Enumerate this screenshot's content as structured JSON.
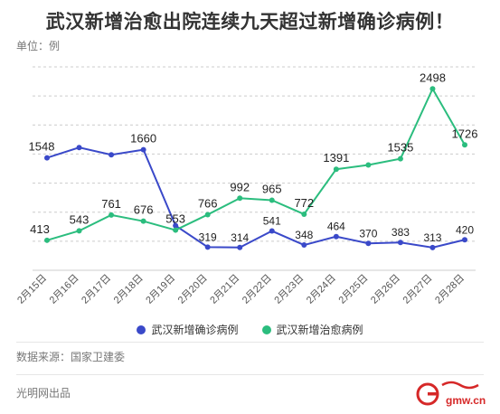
{
  "header": {
    "title": "武汉新增治愈出院连续九天超过新增确诊病例！",
    "unit": "单位：例"
  },
  "footer": {
    "source": "数据来源：国家卫建委",
    "producer": "光明网出品",
    "logo_text": "gmw.cn"
  },
  "colors": {
    "confirmed": "#3a49c9",
    "cured": "#2bbd7e",
    "grid": "#cccccc",
    "tick": "#555555"
  },
  "chart_data": {
    "type": "line",
    "title": "武汉新增治愈出院连续九天超过新增确诊病例！",
    "xlabel": "",
    "ylabel": "单位：例",
    "ylim": [
      0,
      2800
    ],
    "grid": true,
    "legend": "bottom",
    "categories": [
      "2月15日",
      "2月16日",
      "2月17日",
      "2月18日",
      "2月19日",
      "2月20日",
      "2月21日",
      "2月22日",
      "2月23日",
      "2月24日",
      "2月25日",
      "2月26日",
      "2月27日",
      "2月28日"
    ],
    "series": [
      {
        "name": "武汉新增确诊病例",
        "color": "#3a49c9",
        "values": [
          1548,
          1690,
          1590,
          1660,
          615,
          319,
          314,
          541,
          348,
          464,
          370,
          383,
          313,
          420
        ],
        "labels": [
          "1548",
          "",
          "",
          "1660",
          "",
          "319",
          "314",
          "541",
          "348",
          "464",
          "370",
          "383",
          "313",
          "420"
        ]
      },
      {
        "name": "武汉新增治愈病例",
        "color": "#2bbd7e",
        "values": [
          413,
          543,
          761,
          676,
          553,
          766,
          992,
          965,
          772,
          1391,
          1450,
          1535,
          2498,
          1726
        ],
        "labels": [
          "413",
          "543",
          "761",
          "676",
          "553",
          "766",
          "992",
          "965",
          "772",
          "1391",
          "",
          "1535",
          "2498",
          "1726"
        ]
      }
    ]
  }
}
